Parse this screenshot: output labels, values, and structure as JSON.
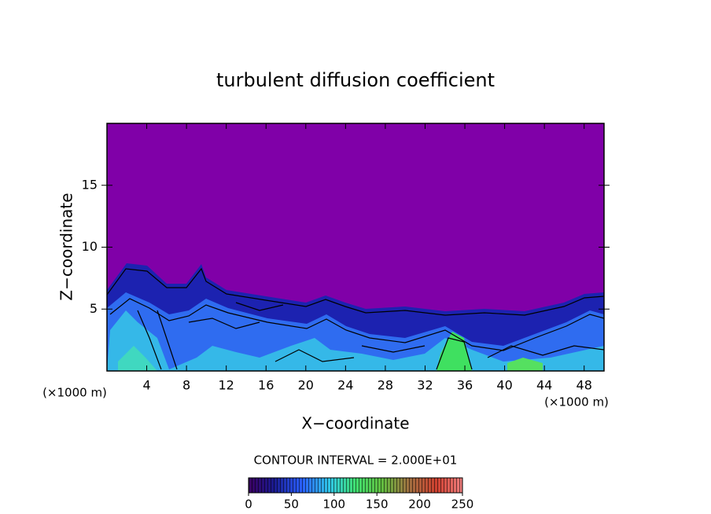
{
  "chart_data": {
    "type": "contour",
    "title": "turbulent diffusion coefficient",
    "xlabel": "X−coordinate",
    "ylabel": "Z−coordinate",
    "x_unit_label": "(×1000 m)",
    "xlim": [
      0,
      50
    ],
    "xticks": [
      4,
      8,
      12,
      16,
      20,
      24,
      28,
      32,
      36,
      40,
      44,
      48
    ],
    "ylim": [
      0,
      20
    ],
    "yticks": [
      5,
      10,
      15
    ],
    "contour_interval_label": "CONTOUR INTERVAL = 2.000E+01",
    "colorbar": {
      "lim": [
        0,
        250
      ],
      "ticks": [
        0,
        50,
        100,
        150,
        200,
        250
      ]
    }
  }
}
